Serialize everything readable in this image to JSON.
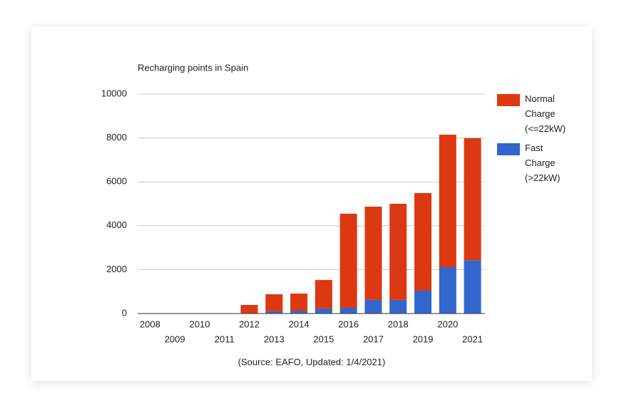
{
  "chart_data": {
    "type": "stacked_bar",
    "title": "Recharging points in Spain",
    "source": "(Source: EAFO, Updated: 1/4/2021)",
    "categories": [
      "2008",
      "2009",
      "2010",
      "2011",
      "2012",
      "2013",
      "2014",
      "2015",
      "2016",
      "2017",
      "2018",
      "2019",
      "2020",
      "2021"
    ],
    "series": [
      {
        "name": "Normal Charge (<=22kW)",
        "color": "#dc3912",
        "values": [
          0,
          0,
          0,
          0,
          380,
          780,
          780,
          1300,
          4290,
          4250,
          4380,
          4450,
          6040,
          5560
        ]
      },
      {
        "name": "Fast Charge (>22kW)",
        "color": "#3366cc",
        "values": [
          0,
          0,
          0,
          0,
          10,
          100,
          130,
          230,
          260,
          620,
          620,
          1040,
          2110,
          2430
        ]
      }
    ],
    "ylim": [
      0,
      10000
    ],
    "yticks": [
      0,
      2000,
      4000,
      6000,
      8000,
      10000
    ],
    "grid": true,
    "legend": "right"
  }
}
